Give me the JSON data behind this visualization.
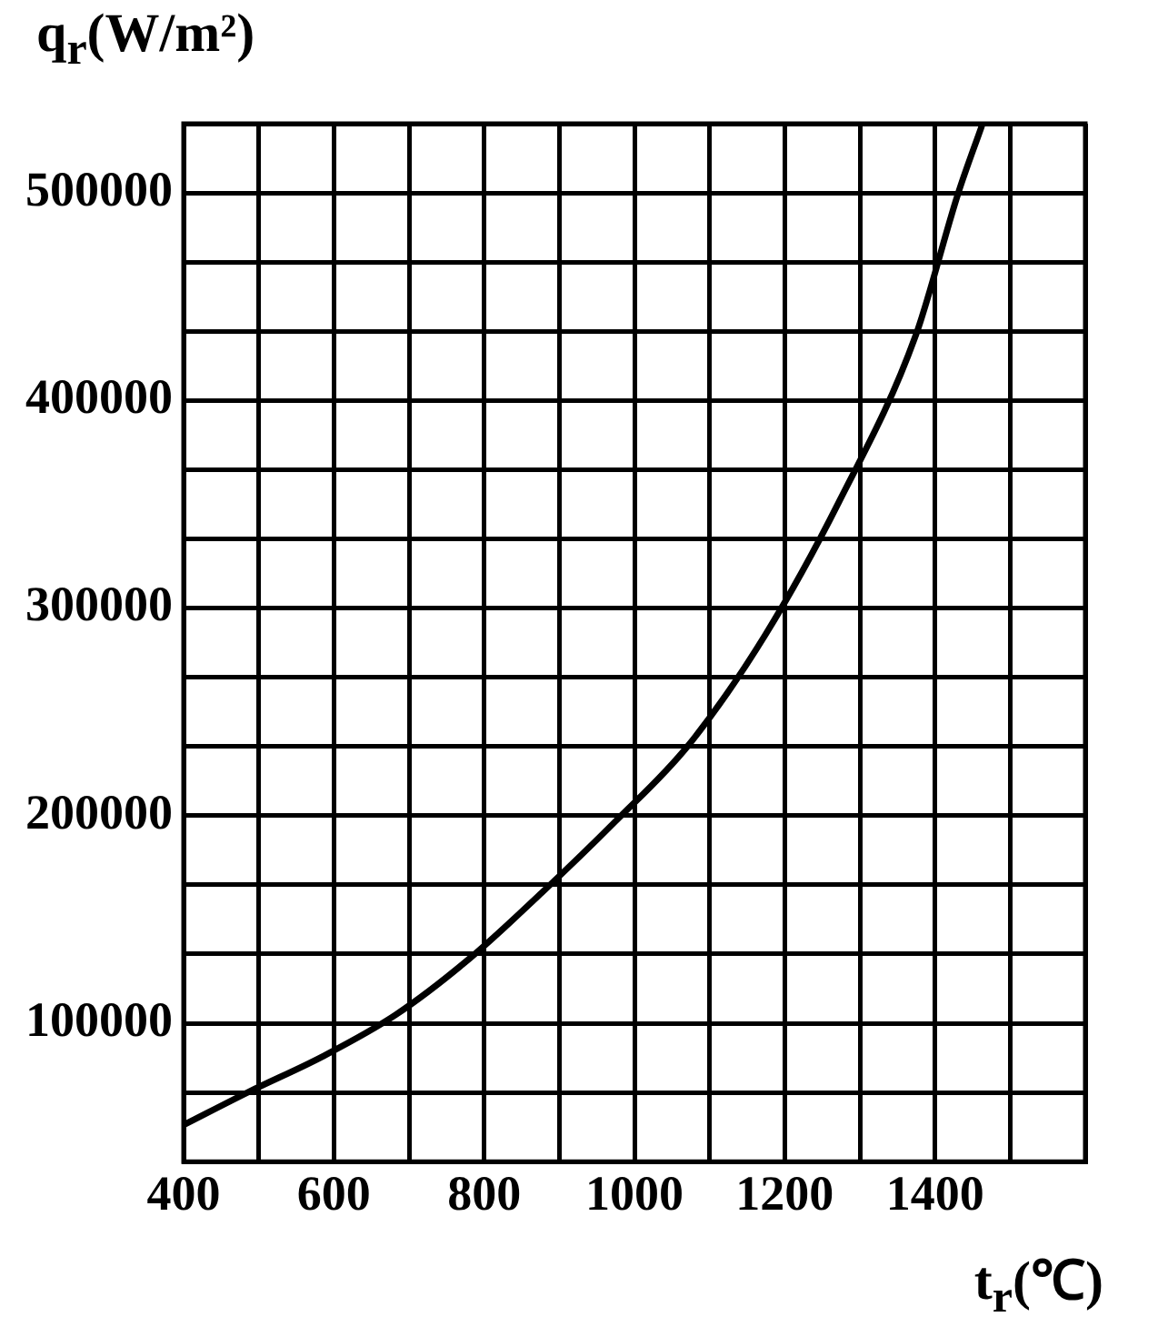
{
  "chart_data": {
    "type": "line",
    "xlabel": "t$_{r}$(℃)",
    "ylabel": "q$_{r}$(W/m²)",
    "x": [
      400,
      487,
      585,
      682,
      780,
      877,
      974,
      1072,
      1174,
      1272,
      1374,
      1431,
      1462
    ],
    "series": [
      {
        "color": "#000000",
        "values": [
          51000,
          67000,
          84000,
          104000,
          131000,
          163000,
          197000,
          234000,
          287000,
          351000,
          431000,
          500000,
          532000
        ]
      }
    ],
    "xlim": [
      400,
      1600
    ],
    "xticks": [
      400,
      {
        "value": 500,
        "label": null
      },
      600,
      {
        "value": 700,
        "label": null
      },
      800,
      {
        "value": 900,
        "label": null
      },
      1000,
      {
        "value": 1100,
        "label": null
      },
      1200,
      {
        "value": 1300,
        "label": null
      },
      1400,
      {
        "value": 1500,
        "label": null
      },
      {
        "value": 1600,
        "label": null
      }
    ],
    "ylim": [
      33333,
      533333
    ],
    "yticks": [
      {
        "value": 33333,
        "label": null
      },
      {
        "value": 66667,
        "label": null
      },
      100000,
      {
        "value": 133333,
        "label": null
      },
      {
        "value": 166667,
        "label": null
      },
      200000,
      {
        "value": 233333,
        "label": null
      },
      {
        "value": 266667,
        "label": null
      },
      300000,
      {
        "value": 333333,
        "label": null
      },
      {
        "value": 366667,
        "label": null
      },
      400000,
      {
        "value": 433333,
        "label": null
      },
      {
        "value": 466667,
        "label": null
      },
      500000,
      {
        "value": 533333,
        "label": null
      }
    ],
    "grid": true,
    "marker": "none",
    "line_style": "solid",
    "legend": false
  }
}
